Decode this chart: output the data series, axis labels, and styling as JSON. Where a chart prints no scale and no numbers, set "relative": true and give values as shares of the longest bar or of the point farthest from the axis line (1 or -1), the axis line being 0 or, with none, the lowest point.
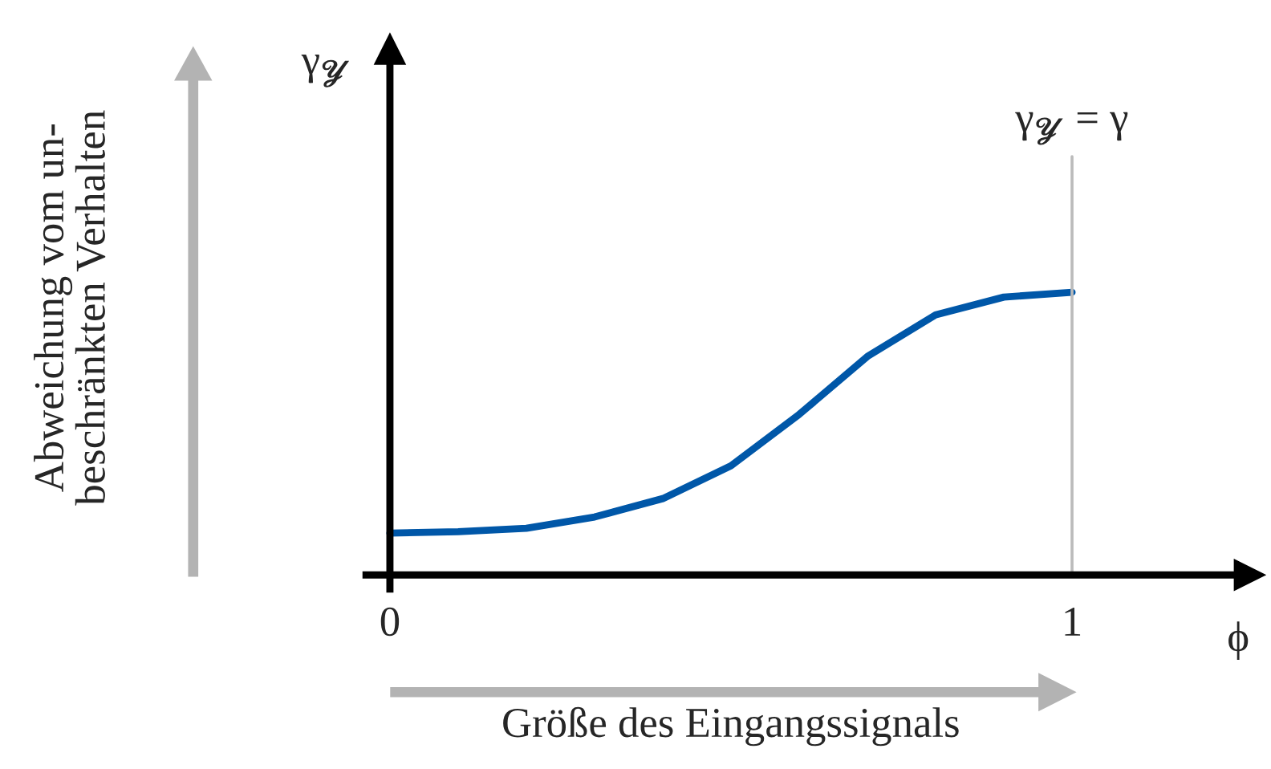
{
  "chart_data": {
    "type": "line",
    "relative": true,
    "xlabel": "ϕ",
    "ylabel": "γ$_{𝓨}$",
    "x": [
      0,
      0.1,
      0.2,
      0.3,
      0.4,
      0.5,
      0.6,
      0.7,
      0.8,
      0.9,
      1.0
    ],
    "series": [
      {
        "color": "#0057a8",
        "values": [
          0.148,
          0.153,
          0.165,
          0.205,
          0.27,
          0.386,
          0.568,
          0.773,
          0.92,
          0.983,
          1.0
        ]
      }
    ],
    "xlim": [
      -0.035,
      1.26
    ],
    "xticks": [
      0,
      1
    ],
    "tick_labels": "x",
    "grid": false,
    "ref_lines": [
      {
        "axis": "x",
        "value": 1,
        "label": "γ$_{𝓨}$ = γ",
        "color": "#bbbbbb"
      }
    ],
    "annotations": [
      "Abweichung vom un-\nbeschränkten Verhalten",
      "Größe des Eingangssignals"
    ]
  }
}
